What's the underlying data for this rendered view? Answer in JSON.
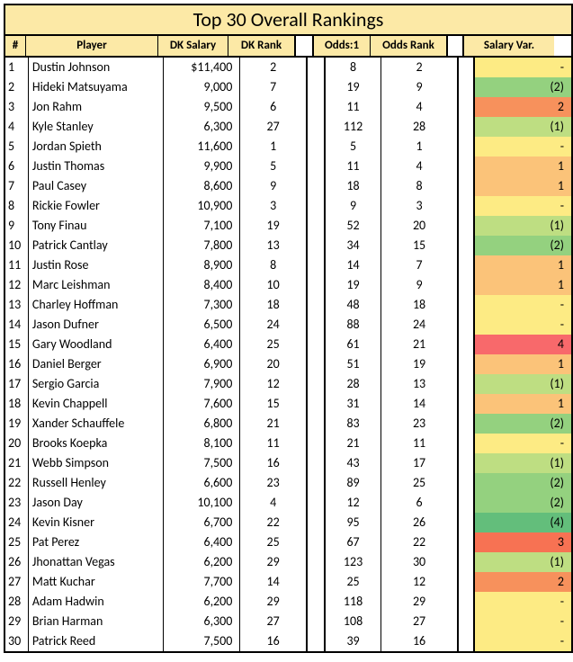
{
  "title": "Top 30 Overall Rankings",
  "columns": {
    "num": "#",
    "player": "Player",
    "dk_salary": "DK Salary",
    "dk_rank": "DK Rank",
    "odds": "Odds:1",
    "odds_rank": "Odds Rank",
    "salary_var": "Salary Var."
  },
  "var_colors": {
    "-": "#fdeb84",
    "(1)": "#bede82",
    "(2)": "#94d17f",
    "(4)": "#63be7b",
    "1": "#fbc379",
    "2": "#f7915c",
    "3": "#f77253",
    "4": "#f8696b"
  },
  "rows": [
    {
      "n": "1",
      "player": "Dustin Johnson",
      "sal": "$11,400",
      "dkr": "2",
      "odds": "8",
      "or": "2",
      "var": "-"
    },
    {
      "n": "2",
      "player": "Hideki Matsuyama",
      "sal": "9,000",
      "dkr": "7",
      "odds": "19",
      "or": "9",
      "var": "(2)"
    },
    {
      "n": "3",
      "player": "Jon Rahm",
      "sal": "9,500",
      "dkr": "6",
      "odds": "11",
      "or": "4",
      "var": "2"
    },
    {
      "n": "4",
      "player": "Kyle Stanley",
      "sal": "6,300",
      "dkr": "27",
      "odds": "112",
      "or": "28",
      "var": "(1)"
    },
    {
      "n": "5",
      "player": "Jordan Spieth",
      "sal": "11,600",
      "dkr": "1",
      "odds": "5",
      "or": "1",
      "var": "-"
    },
    {
      "n": "6",
      "player": "Justin Thomas",
      "sal": "9,900",
      "dkr": "5",
      "odds": "11",
      "or": "4",
      "var": "1"
    },
    {
      "n": "7",
      "player": "Paul Casey",
      "sal": "8,600",
      "dkr": "9",
      "odds": "18",
      "or": "8",
      "var": "1"
    },
    {
      "n": "8",
      "player": "Rickie Fowler",
      "sal": "10,900",
      "dkr": "3",
      "odds": "9",
      "or": "3",
      "var": "-"
    },
    {
      "n": "9",
      "player": "Tony Finau",
      "sal": "7,100",
      "dkr": "19",
      "odds": "52",
      "or": "20",
      "var": "(1)"
    },
    {
      "n": "10",
      "player": "Patrick Cantlay",
      "sal": "7,800",
      "dkr": "13",
      "odds": "34",
      "or": "15",
      "var": "(2)"
    },
    {
      "n": "11",
      "player": "Justin Rose",
      "sal": "8,900",
      "dkr": "8",
      "odds": "14",
      "or": "7",
      "var": "1"
    },
    {
      "n": "12",
      "player": "Marc Leishman",
      "sal": "8,400",
      "dkr": "10",
      "odds": "19",
      "or": "9",
      "var": "1"
    },
    {
      "n": "13",
      "player": "Charley Hoffman",
      "sal": "7,300",
      "dkr": "18",
      "odds": "48",
      "or": "18",
      "var": "-"
    },
    {
      "n": "14",
      "player": "Jason Dufner",
      "sal": "6,500",
      "dkr": "24",
      "odds": "88",
      "or": "24",
      "var": "-"
    },
    {
      "n": "15",
      "player": "Gary Woodland",
      "sal": "6,400",
      "dkr": "25",
      "odds": "61",
      "or": "21",
      "var": "4"
    },
    {
      "n": "16",
      "player": "Daniel Berger",
      "sal": "6,900",
      "dkr": "20",
      "odds": "51",
      "or": "19",
      "var": "1"
    },
    {
      "n": "17",
      "player": "Sergio Garcia",
      "sal": "7,900",
      "dkr": "12",
      "odds": "28",
      "or": "13",
      "var": "(1)"
    },
    {
      "n": "18",
      "player": "Kevin Chappell",
      "sal": "7,600",
      "dkr": "15",
      "odds": "31",
      "or": "14",
      "var": "1"
    },
    {
      "n": "19",
      "player": "Xander Schauffele",
      "sal": "6,800",
      "dkr": "21",
      "odds": "83",
      "or": "23",
      "var": "(2)"
    },
    {
      "n": "20",
      "player": "Brooks Koepka",
      "sal": "8,100",
      "dkr": "11",
      "odds": "21",
      "or": "11",
      "var": "-"
    },
    {
      "n": "21",
      "player": "Webb Simpson",
      "sal": "7,500",
      "dkr": "16",
      "odds": "43",
      "or": "17",
      "var": "(1)"
    },
    {
      "n": "22",
      "player": "Russell Henley",
      "sal": "6,600",
      "dkr": "23",
      "odds": "89",
      "or": "25",
      "var": "(2)"
    },
    {
      "n": "23",
      "player": "Jason Day",
      "sal": "10,100",
      "dkr": "4",
      "odds": "12",
      "or": "6",
      "var": "(2)"
    },
    {
      "n": "24",
      "player": "Kevin Kisner",
      "sal": "6,700",
      "dkr": "22",
      "odds": "95",
      "or": "26",
      "var": "(4)"
    },
    {
      "n": "25",
      "player": "Pat Perez",
      "sal": "6,400",
      "dkr": "25",
      "odds": "67",
      "or": "22",
      "var": "3"
    },
    {
      "n": "26",
      "player": "Jhonattan Vegas",
      "sal": "6,200",
      "dkr": "29",
      "odds": "123",
      "or": "30",
      "var": "(1)"
    },
    {
      "n": "27",
      "player": "Matt Kuchar",
      "sal": "7,700",
      "dkr": "14",
      "odds": "25",
      "or": "12",
      "var": "2"
    },
    {
      "n": "28",
      "player": "Adam Hadwin",
      "sal": "6,200",
      "dkr": "29",
      "odds": "118",
      "or": "29",
      "var": "-"
    },
    {
      "n": "29",
      "player": "Brian Harman",
      "sal": "6,300",
      "dkr": "27",
      "odds": "108",
      "or": "27",
      "var": "-"
    },
    {
      "n": "30",
      "player": "Patrick Reed",
      "sal": "7,500",
      "dkr": "16",
      "odds": "39",
      "or": "16",
      "var": "-"
    }
  ]
}
